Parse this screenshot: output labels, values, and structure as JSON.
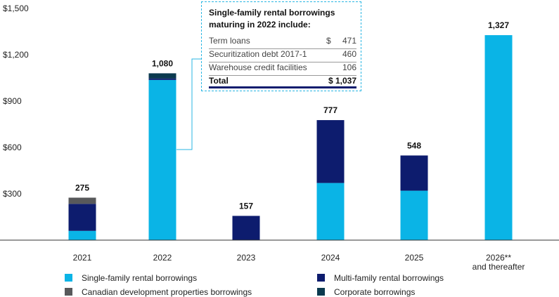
{
  "colors": {
    "single_family": "#0ab4e6",
    "multi_family": "#0d1c6e",
    "canadian": "#58595b",
    "corporate": "#0b3a4f"
  },
  "chart_data": {
    "type": "bar",
    "stacked": true,
    "categories": [
      "2021",
      "2022",
      "2023",
      "2024",
      "2025",
      "2026** and thereafter"
    ],
    "category_lines": [
      [
        "2021"
      ],
      [
        "2022"
      ],
      [
        "2023"
      ],
      [
        "2024"
      ],
      [
        "2025"
      ],
      [
        "2026**",
        "and thereafter"
      ]
    ],
    "series": [
      {
        "name": "Single-family rental borrowings",
        "key": "single_family",
        "values": [
          60,
          1037,
          0,
          370,
          320,
          1327
        ]
      },
      {
        "name": "Multi-family rental borrowings",
        "key": "multi_family",
        "values": [
          175,
          10,
          157,
          407,
          228,
          0
        ]
      },
      {
        "name": "Canadian development properties borrowings",
        "key": "canadian",
        "values": [
          40,
          0,
          0,
          0,
          0,
          0
        ]
      },
      {
        "name": "Corporate borrowings",
        "key": "corporate",
        "values": [
          0,
          33,
          0,
          0,
          0,
          0
        ]
      }
    ],
    "totals": [
      "275",
      "1,080",
      "157",
      "777",
      "548",
      "1,327"
    ],
    "yticks": [
      {
        "value": 300,
        "label": "$300"
      },
      {
        "value": 600,
        "label": "$600"
      },
      {
        "value": 900,
        "label": "$900"
      },
      {
        "value": 1200,
        "label": "$1,200"
      },
      {
        "value": 1500,
        "label": "$1,500"
      }
    ],
    "ylim": [
      0,
      1500
    ],
    "grid": false,
    "legend_position": "bottom"
  },
  "callout": {
    "title": "Single-family rental borrowings maturing in 2022 include:",
    "rows": [
      {
        "label": "Term loans",
        "currency": "$",
        "value": "471"
      },
      {
        "label": "Securitization debt 2017-1",
        "currency": "",
        "value": "460"
      },
      {
        "label": "Warehouse credit facilities",
        "currency": "",
        "value": "106"
      }
    ],
    "total": {
      "label": "Total",
      "value": "$ 1,037"
    }
  },
  "legend": [
    {
      "label": "Single-family rental borrowings",
      "key": "single_family"
    },
    {
      "label": "Multi-family rental borrowings",
      "key": "multi_family"
    },
    {
      "label": "Canadian development properties borrowings",
      "key": "canadian"
    },
    {
      "label": "Corporate borrowings",
      "key": "corporate"
    }
  ]
}
